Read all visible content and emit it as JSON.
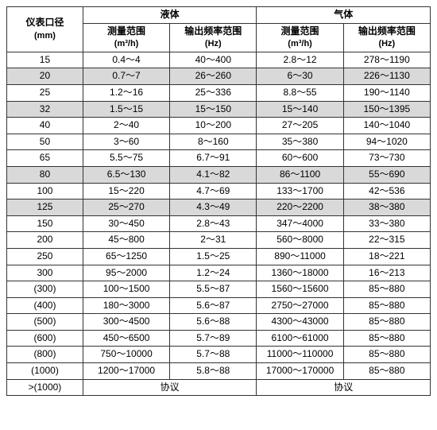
{
  "header": {
    "diameter_label": "仪表口径",
    "diameter_unit": "(mm)",
    "liquid_label": "液体",
    "gas_label": "气体",
    "measure_range_label": "测量范围",
    "measure_range_unit": "(m³/h)",
    "output_freq_label": "输出频率范围",
    "output_freq_unit": "(Hz)"
  },
  "colors": {
    "border": "#333333",
    "bg_light": "#ffffff",
    "bg_gray": "#d9d9d9"
  },
  "rows": [
    {
      "shade": "light",
      "dia": "15",
      "liq_range": "0.4～4",
      "liq_freq": "40～400",
      "gas_range": "2.8～12",
      "gas_freq": "278～1190"
    },
    {
      "shade": "gray",
      "dia": "20",
      "liq_range": "0.7～7",
      "liq_freq": "26～260",
      "gas_range": "6～30",
      "gas_freq": "226～1130"
    },
    {
      "shade": "light",
      "dia": "25",
      "liq_range": "1.2～16",
      "liq_freq": "25～336",
      "gas_range": "8.8～55",
      "gas_freq": "190～1140"
    },
    {
      "shade": "gray",
      "dia": "32",
      "liq_range": "1.5～15",
      "liq_freq": "15～150",
      "gas_range": "15～140",
      "gas_freq": "150～1395"
    },
    {
      "shade": "light",
      "dia": "40",
      "liq_range": "2～40",
      "liq_freq": "10～200",
      "gas_range": "27～205",
      "gas_freq": "140～1040"
    },
    {
      "shade": "light",
      "dia": "50",
      "liq_range": "3～60",
      "liq_freq": "8～160",
      "gas_range": "35～380",
      "gas_freq": "94～1020"
    },
    {
      "shade": "light",
      "dia": "65",
      "liq_range": "5.5～75",
      "liq_freq": "6.7～91",
      "gas_range": "60～600",
      "gas_freq": "73～730"
    },
    {
      "shade": "gray",
      "dia": "80",
      "liq_range": "6.5～130",
      "liq_freq": "4.1～82",
      "gas_range": "86～1100",
      "gas_freq": "55～690"
    },
    {
      "shade": "light",
      "dia": "100",
      "liq_range": "15～220",
      "liq_freq": "4.7～69",
      "gas_range": "133～1700",
      "gas_freq": "42～536"
    },
    {
      "shade": "gray",
      "dia": "125",
      "liq_range": "25～270",
      "liq_freq": "4.3～49",
      "gas_range": "220～2200",
      "gas_freq": "38～380"
    },
    {
      "shade": "light",
      "dia": "150",
      "liq_range": "30～450",
      "liq_freq": "2.8～43",
      "gas_range": "347～4000",
      "gas_freq": "33～380"
    },
    {
      "shade": "light",
      "dia": "200",
      "liq_range": "45～800",
      "liq_freq": "2～31",
      "gas_range": "560～8000",
      "gas_freq": "22～315"
    },
    {
      "shade": "light",
      "dia": "250",
      "liq_range": "65～1250",
      "liq_freq": "1.5～25",
      "gas_range": "890～11000",
      "gas_freq": "18～221"
    },
    {
      "shade": "light",
      "dia": "300",
      "liq_range": "95～2000",
      "liq_freq": "1.2～24",
      "gas_range": "1360～18000",
      "gas_freq": "16～213"
    },
    {
      "shade": "light",
      "dia": "(300)",
      "liq_range": "100～1500",
      "liq_freq": "5.5～87",
      "gas_range": "1560～15600",
      "gas_freq": "85～880"
    },
    {
      "shade": "light",
      "dia": "(400)",
      "liq_range": "180～3000",
      "liq_freq": "5.6～87",
      "gas_range": "2750～27000",
      "gas_freq": "85～880"
    },
    {
      "shade": "light",
      "dia": "(500)",
      "liq_range": "300～4500",
      "liq_freq": "5.6～88",
      "gas_range": "4300～43000",
      "gas_freq": "85～880"
    },
    {
      "shade": "light",
      "dia": "(600)",
      "liq_range": "450～6500",
      "liq_freq": "5.7～89",
      "gas_range": "6100～61000",
      "gas_freq": "85～880"
    },
    {
      "shade": "light",
      "dia": "(800)",
      "liq_range": "750～10000",
      "liq_freq": "5.7～88",
      "gas_range": "11000～110000",
      "gas_freq": "85～880"
    },
    {
      "shade": "light",
      "dia": "(1000)",
      "liq_range": "1200～17000",
      "liq_freq": "5.8～88",
      "gas_range": "17000～170000",
      "gas_freq": "85～880"
    },
    {
      "shade": "light",
      "dia": ">(1000)",
      "liq_range": "协议",
      "liq_freq": "",
      "gas_range": "协议",
      "gas_freq": "",
      "liq_colspan": 2,
      "gas_colspan": 2
    }
  ]
}
